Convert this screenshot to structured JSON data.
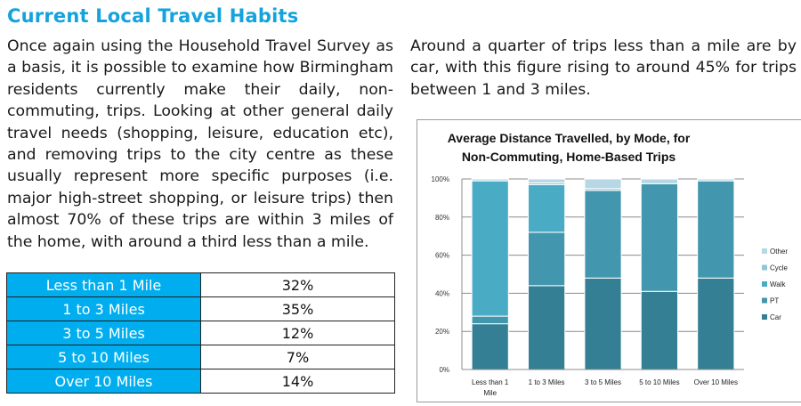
{
  "heading": "Current Local Travel Habits",
  "left_paragraph": "Once again using the Household Travel Survey as a basis, it is possible to examine how Birmingham residents currently make their daily, non-commuting, trips.  Looking at other general daily travel needs (shopping, leisure, education etc), and removing trips to the city centre as these usually represent more specific purposes (i.e. major high-street shopping, or leisure trips) then almost 70% of these trips are within 3 miles of the home, with around a third less than a mile.",
  "right_paragraph": "Around a quarter of trips less than a mile are by car, with this figure rising to around 45% for trips between 1 and 3 miles.",
  "distance_table": {
    "rows": [
      {
        "label": "Less than 1 Mile",
        "value": "32%"
      },
      {
        "label": "1 to 3 Miles",
        "value": "35%"
      },
      {
        "label": "3 to 5 Miles",
        "value": "12%"
      },
      {
        "label": "5 to 10 Miles",
        "value": "7%"
      },
      {
        "label": "Over 10 Miles",
        "value": "14%"
      }
    ],
    "label_bg_color": "#00aeef"
  },
  "chart_data": {
    "type": "bar",
    "stacked": true,
    "percent_stacked": true,
    "title": "Average Distance Travelled, by Mode, for Non-Commuting, Home-Based Trips",
    "title_lines": [
      "Average Distance Travelled, by Mode, for",
      "Non-Commuting, Home-Based Trips"
    ],
    "xlabel": "",
    "ylabel": "",
    "categories": [
      "Less than 1 Mile",
      "1 to 3 Miles",
      "3 to 5 Miles",
      "5 to 10 Miles",
      "Over 10 Miles"
    ],
    "category_label_lines": [
      [
        "Less than 1",
        "Mile"
      ],
      [
        "1 to 3 Miles"
      ],
      [
        "3 to 5 Miles"
      ],
      [
        "5 to 10 Miles"
      ],
      [
        "Over 10 Miles"
      ]
    ],
    "ylim": [
      0,
      100
    ],
    "yticks": [
      "0%",
      "20%",
      "40%",
      "60%",
      "80%",
      "100%"
    ],
    "grid": true,
    "legend_position": "right",
    "series": [
      {
        "name": "Car",
        "color": "#347f94",
        "values": [
          24,
          44,
          48,
          41,
          48
        ]
      },
      {
        "name": "PT",
        "color": "#4297af",
        "values": [
          4,
          28,
          46,
          56.5,
          51
        ]
      },
      {
        "name": "Walk",
        "color": "#4aabc5",
        "values": [
          71,
          25,
          0,
          0,
          0
        ]
      },
      {
        "name": "Cycle",
        "color": "#91c5d6",
        "values": [
          0,
          1,
          1,
          0,
          0
        ]
      },
      {
        "name": "Other",
        "color": "#b7d7e4",
        "values": [
          1,
          2,
          5,
          2.5,
          1
        ]
      }
    ],
    "legend_order": [
      "Other",
      "Cycle",
      "Walk",
      "PT",
      "Car"
    ]
  }
}
